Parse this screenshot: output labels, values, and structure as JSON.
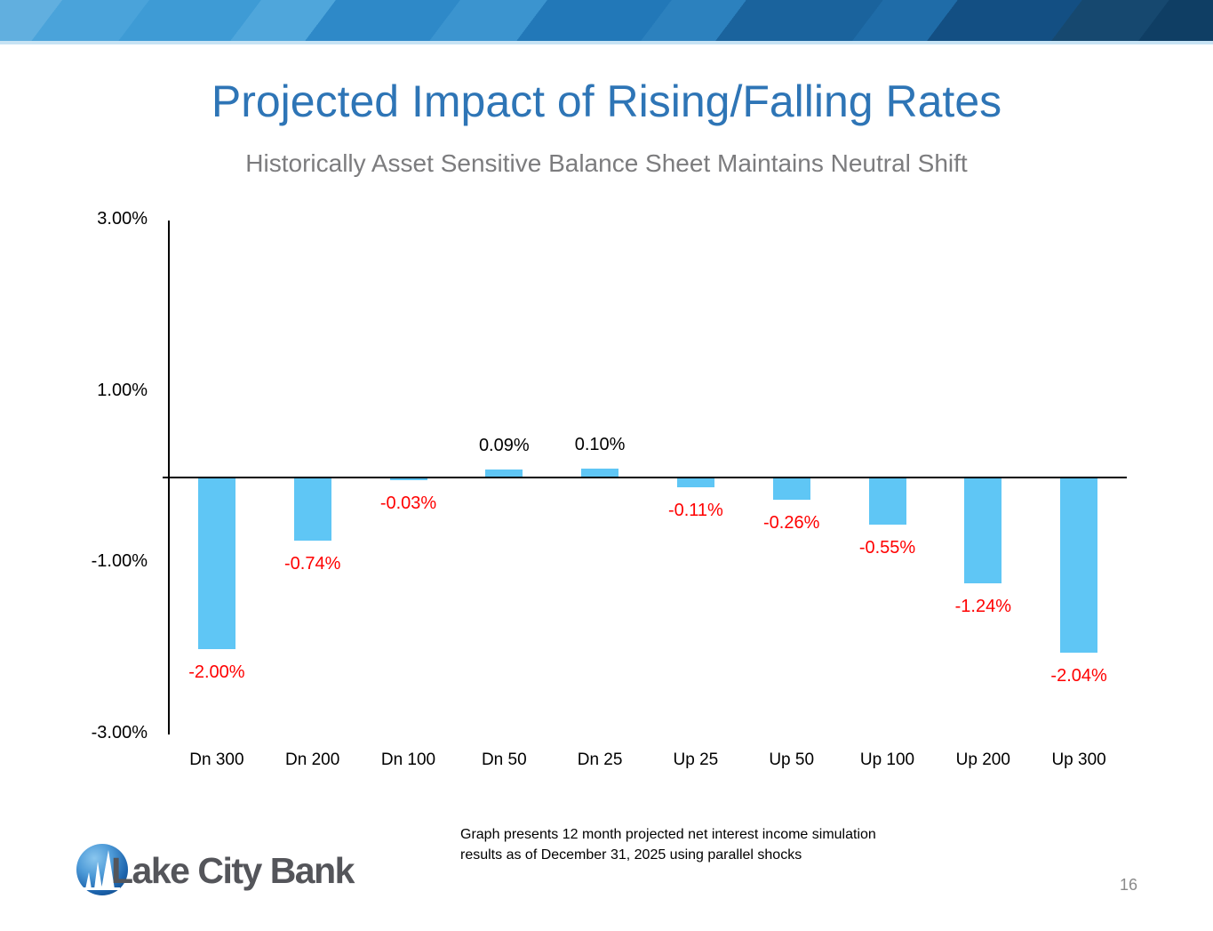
{
  "slide": {
    "title": "Projected Impact of Rising/Falling Rates",
    "subtitle": "Historically Asset Sensitive Balance Sheet Maintains Neutral Shift",
    "footnote_line1": "Graph presents 12 month projected net interest income simulation",
    "footnote_line2": "results as of December 31, 2025 using parallel shocks",
    "page_number": "16"
  },
  "logo": {
    "wordmark": "Lake City Bank",
    "mark_icon": "bridge-globe-icon"
  },
  "colors": {
    "title_blue": "#2E75B6",
    "subtitle_gray": "#7C7C7E",
    "banner_light_blue": "#61AFDF",
    "banner_dark_blue": "#0F3E64",
    "page_number_gray": "#8A8A8A"
  },
  "chart_data": {
    "type": "bar",
    "title": "",
    "xlabel": "",
    "ylabel": "",
    "categories": [
      "Dn 300",
      "Dn 200",
      "Dn 100",
      "Dn 50",
      "Dn 25",
      "Up 25",
      "Up 50",
      "Up 100",
      "Up 200",
      "Up 300"
    ],
    "values": [
      -2.0,
      -0.74,
      -0.03,
      0.09,
      0.1,
      -0.11,
      -0.26,
      -0.55,
      -1.24,
      -2.04
    ],
    "bar_labels": [
      "-2.00%",
      "-0.74%",
      "-0.03%",
      "0.09%",
      "0.10%",
      "-0.11%",
      "-0.26%",
      "-0.55%",
      "-1.24%",
      "-2.04%"
    ],
    "y_tick_labels": [
      "3.00%",
      "1.00%",
      "-1.00%",
      "-3.00%"
    ],
    "y_tick_values": [
      3,
      1,
      -1,
      -3
    ],
    "ylim": [
      -3,
      3
    ],
    "grid": false,
    "legend": null,
    "bar_color": "#5FC6F5",
    "positive_label_color": "#000000",
    "negative_label_color": "#FF0000",
    "axis_color": "#000000"
  }
}
